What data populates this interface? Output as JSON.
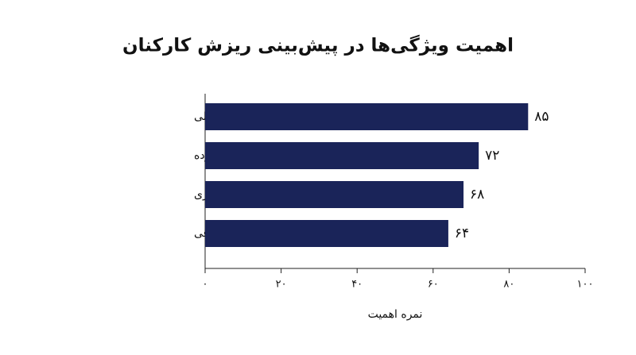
{
  "chart_data": {
    "type": "barh",
    "title": "اهمیت ویژگی‌ها در پیش‌بینی ریزش کارکنان",
    "x_label": "نمره اهمیت",
    "categories": [
      "طول سابقه شغلی",
      "تعداد کل شرکت‌هایی که کار کرده",
      "ساعات اضافه کاری",
      "شکاف حقوقی"
    ],
    "values": [
      85,
      72,
      68,
      64
    ],
    "value_labels": [
      "۸۵",
      "۷۲",
      "۶۸",
      "۶۴"
    ],
    "color": "#1a2459",
    "xlim": [
      0,
      100
    ],
    "xticks": [
      {
        "value": 0,
        "label": "۰"
      },
      {
        "value": 20,
        "label": "۲۰"
      },
      {
        "value": 40,
        "label": "۴۰"
      },
      {
        "value": 60,
        "label": "۶۰"
      },
      {
        "value": 80,
        "label": "۸۰"
      },
      {
        "value": 100,
        "label": "۱۰۰"
      }
    ]
  }
}
